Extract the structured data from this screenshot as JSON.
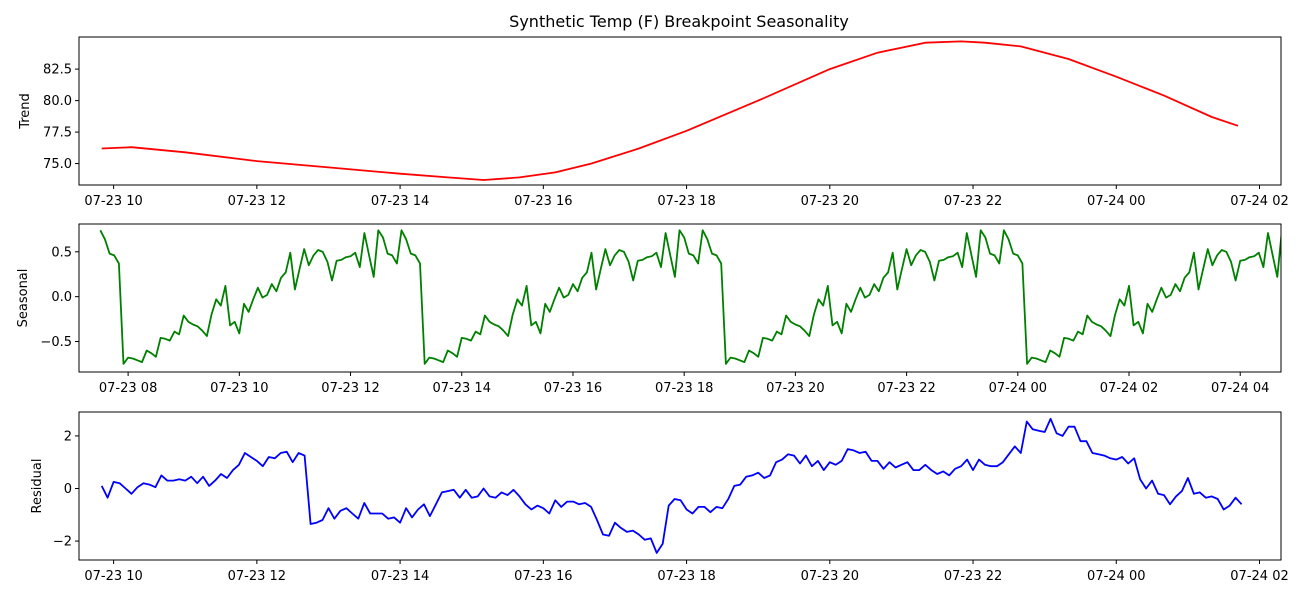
{
  "figure": {
    "title": "Synthetic Temp (F) Breakpoint Seasonality"
  },
  "chart_data": [
    {
      "type": "line",
      "name": "trend",
      "ylabel": "Trend",
      "color": "#ff0000",
      "xlim": [
        "2023-07-23 09:31",
        "2023-07-24 02:18"
      ],
      "ylim": [
        73.3,
        85.05
      ],
      "yticks": [
        75.0,
        77.5,
        80.0,
        82.5
      ],
      "ytick_labels": [
        "75.0",
        "77.5",
        "80.0",
        "82.5"
      ],
      "xticks": [
        "2023-07-23 10:00",
        "2023-07-23 12:00",
        "2023-07-23 14:00",
        "2023-07-23 16:00",
        "2023-07-23 18:00",
        "2023-07-23 20:00",
        "2023-07-23 22:00",
        "2023-07-24 00:00",
        "2023-07-24 02:00"
      ],
      "xtick_labels": [
        "07-23 10",
        "07-23 12",
        "07-23 14",
        "07-23 16",
        "07-23 18",
        "07-23 20",
        "07-23 22",
        "07-24 00",
        "07-24 02"
      ],
      "x": [
        "2023-07-23 09:50",
        "2023-07-23 10:15",
        "2023-07-23 11:00",
        "2023-07-23 12:00",
        "2023-07-23 13:00",
        "2023-07-23 14:00",
        "2023-07-23 14:40",
        "2023-07-23 15:10",
        "2023-07-23 15:40",
        "2023-07-23 16:10",
        "2023-07-23 16:40",
        "2023-07-23 17:20",
        "2023-07-23 18:00",
        "2023-07-23 19:00",
        "2023-07-23 20:00",
        "2023-07-23 20:40",
        "2023-07-23 21:20",
        "2023-07-23 21:50",
        "2023-07-23 22:10",
        "2023-07-23 22:40",
        "2023-07-23 23:20",
        "2023-07-24 00:00",
        "2023-07-24 00:40",
        "2023-07-24 01:20",
        "2023-07-24 01:42"
      ],
      "y": [
        76.2,
        76.3,
        75.9,
        75.2,
        74.7,
        74.2,
        73.9,
        73.7,
        73.9,
        74.3,
        75.0,
        76.2,
        77.6,
        80.0,
        82.5,
        83.8,
        84.6,
        84.7,
        84.6,
        84.3,
        83.3,
        81.9,
        80.4,
        78.7,
        78.0
      ]
    },
    {
      "type": "line",
      "name": "seasonal",
      "ylabel": "Seasonal",
      "color": "#008000",
      "xlim": [
        "2023-07-23 07:07",
        "2023-07-24 04:44"
      ],
      "ylim": [
        -0.84,
        0.81
      ],
      "yticks": [
        -0.5,
        0.0,
        0.5
      ],
      "ytick_labels": [
        "−0.5",
        "0.0",
        "0.5"
      ],
      "xticks": [
        "2023-07-23 08:00",
        "2023-07-23 10:00",
        "2023-07-23 12:00",
        "2023-07-23 14:00",
        "2023-07-23 16:00",
        "2023-07-23 18:00",
        "2023-07-23 20:00",
        "2023-07-23 22:00",
        "2023-07-24 00:00",
        "2023-07-24 02:00",
        "2023-07-24 04:00"
      ],
      "xtick_labels": [
        "07-23 08",
        "07-23 10",
        "07-23 12",
        "07-23 14",
        "07-23 16",
        "07-23 18",
        "07-23 20",
        "07-23 22",
        "07-24 00",
        "07-24 02",
        "07-24 04"
      ],
      "period_start": "2023-07-23 07:30",
      "step_minutes": 5,
      "tail": [
        -0.75,
        -0.68,
        -0.71,
        -0.73,
        -0.6
      ],
      "period_values": [
        0.74,
        0.64,
        0.48,
        0.46,
        0.37,
        -0.75,
        -0.68,
        -0.69,
        -0.71,
        -0.73,
        -0.6,
        -0.63,
        -0.67,
        -0.46,
        -0.47,
        -0.49,
        -0.39,
        -0.42,
        -0.21,
        -0.28,
        -0.31,
        -0.33,
        -0.38,
        -0.44,
        -0.2,
        -0.03,
        -0.1,
        0.12,
        -0.32,
        -0.28,
        -0.41,
        -0.08,
        -0.17,
        -0.03,
        0.1,
        -0.01,
        0.02,
        0.14,
        0.06,
        0.21,
        0.27,
        0.49,
        0.08,
        0.31,
        0.53,
        0.35,
        0.46,
        0.52,
        0.5,
        0.39,
        0.18,
        0.4,
        0.41,
        0.44,
        0.45,
        0.49,
        0.33,
        0.71,
        0.46,
        0.22,
        0.74,
        0.66,
        0.48,
        0.46,
        0.37
      ]
    },
    {
      "type": "line",
      "name": "residual",
      "ylabel": "Residual",
      "color": "#0000ff",
      "xlim": [
        "2023-07-23 09:31",
        "2023-07-24 02:18"
      ],
      "ylim": [
        -2.72,
        2.91
      ],
      "yticks": [
        -2,
        0,
        2
      ],
      "ytick_labels": [
        "−2",
        "0",
        "2"
      ],
      "xticks": [
        "2023-07-23 10:00",
        "2023-07-23 12:00",
        "2023-07-23 14:00",
        "2023-07-23 16:00",
        "2023-07-23 18:00",
        "2023-07-23 20:00",
        "2023-07-23 22:00",
        "2023-07-24 00:00",
        "2023-07-24 02:00"
      ],
      "xtick_labels": [
        "07-23 10",
        "07-23 12",
        "07-23 14",
        "07-23 16",
        "07-23 18",
        "07-23 20",
        "07-23 22",
        "07-24 00",
        "07-24 02"
      ],
      "x_start": "2023-07-23 09:50",
      "step_minutes": 5,
      "values": [
        0.1,
        -0.35,
        0.25,
        0.2,
        0.0,
        -0.2,
        0.05,
        0.2,
        0.15,
        0.05,
        0.5,
        0.3,
        0.3,
        0.35,
        0.3,
        0.45,
        0.2,
        0.45,
        0.1,
        0.3,
        0.55,
        0.4,
        0.7,
        0.9,
        1.35,
        1.2,
        1.05,
        0.85,
        1.2,
        1.15,
        1.35,
        1.4,
        1.0,
        1.35,
        1.25,
        -1.35,
        -1.3,
        -1.2,
        -0.75,
        -1.15,
        -0.85,
        -0.75,
        -0.95,
        -1.15,
        -0.55,
        -0.95,
        -0.95,
        -0.95,
        -1.15,
        -1.1,
        -1.3,
        -0.75,
        -1.1,
        -0.8,
        -0.6,
        -1.05,
        -0.6,
        -0.15,
        -0.1,
        -0.05,
        -0.35,
        -0.05,
        -0.35,
        -0.3,
        0.0,
        -0.3,
        -0.35,
        -0.15,
        -0.25,
        -0.05,
        -0.3,
        -0.6,
        -0.8,
        -0.65,
        -0.75,
        -0.95,
        -0.45,
        -0.7,
        -0.5,
        -0.5,
        -0.6,
        -0.55,
        -0.7,
        -1.2,
        -1.75,
        -1.8,
        -1.3,
        -1.5,
        -1.65,
        -1.6,
        -1.75,
        -1.95,
        -1.9,
        -2.45,
        -2.1,
        -0.65,
        -0.4,
        -0.45,
        -0.8,
        -0.95,
        -0.7,
        -0.7,
        -0.9,
        -0.7,
        -0.75,
        -0.4,
        0.1,
        0.15,
        0.45,
        0.5,
        0.6,
        0.4,
        0.5,
        1.0,
        1.1,
        1.3,
        1.25,
        0.95,
        1.25,
        0.85,
        1.05,
        0.7,
        1.0,
        0.9,
        1.05,
        1.5,
        1.45,
        1.35,
        1.4,
        1.05,
        1.05,
        0.75,
        1.0,
        0.8,
        0.9,
        1.0,
        0.7,
        0.7,
        0.9,
        0.7,
        0.55,
        0.65,
        0.5,
        0.75,
        0.85,
        1.1,
        0.7,
        1.1,
        0.9,
        0.85,
        0.85,
        1.0,
        1.3,
        1.6,
        1.35,
        2.55,
        2.25,
        2.2,
        2.15,
        2.65,
        2.1,
        2.0,
        2.35,
        2.35,
        1.8,
        1.8,
        1.35,
        1.3,
        1.25,
        1.15,
        1.1,
        1.2,
        0.95,
        1.15,
        0.35,
        0.0,
        0.3,
        -0.2,
        -0.25,
        -0.6,
        -0.3,
        -0.1,
        0.4,
        -0.2,
        -0.15,
        -0.35,
        -0.3,
        -0.4,
        -0.8,
        -0.65,
        -0.35,
        -0.6
      ]
    }
  ]
}
